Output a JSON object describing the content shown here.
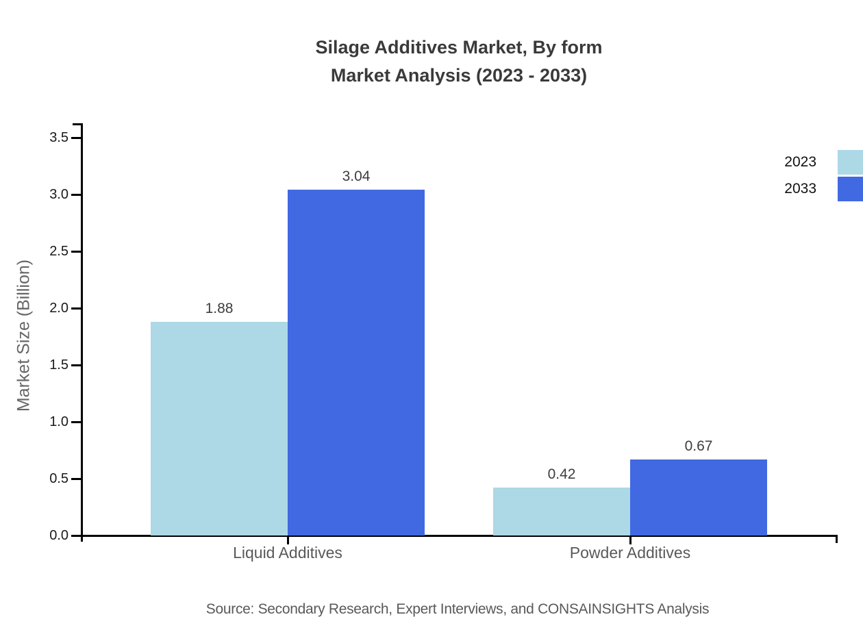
{
  "title": {
    "line1": "Silage Additives Market, By form",
    "line2": "Market Analysis (2023 - 2033)"
  },
  "source_note": "Source: Secondary Research, Expert Interviews, and CONSAINSIGHTS Analysis",
  "chart_data": {
    "type": "bar",
    "categories": [
      "Liquid Additives",
      "Powder Additives"
    ],
    "series": [
      {
        "name": "2023",
        "color": "#add8e6",
        "values": [
          1.88,
          0.42
        ]
      },
      {
        "name": "2033",
        "color": "#4169e1",
        "values": [
          3.04,
          0.67
        ]
      }
    ],
    "title": "Silage Additives Market, By form Market Analysis (2023 - 2033)",
    "xlabel": "",
    "ylabel": "Market Size (Billion)",
    "ylim": [
      0,
      3.65
    ],
    "y_ticks": [
      "0.0",
      "0.5",
      "1.0",
      "1.5",
      "2.0",
      "2.5",
      "3.0",
      "3.5"
    ],
    "grid": false,
    "legend_position": "upper-right-outside",
    "value_label_format": "2-decimals"
  },
  "colors": {
    "series_2023": "#add8e6",
    "series_2033": "#4169e1",
    "axis": "#000000",
    "title_text": "#3a3a3a",
    "category_text": "#595959",
    "source_text": "#595959"
  }
}
